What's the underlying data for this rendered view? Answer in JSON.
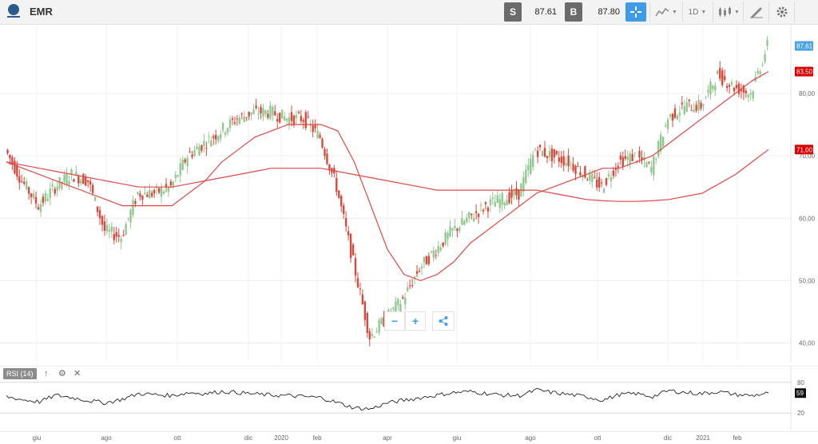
{
  "header": {
    "symbol": "EMR",
    "sell_letter": "S",
    "sell_price": "87.61",
    "buy_letter": "B",
    "buy_price": "87.80",
    "timeframe": "1D",
    "icons": [
      "etoro-logo-icon",
      "crosshair-icon",
      "chart-type-icon",
      "candles-icon",
      "draw-icon",
      "gear-icon"
    ]
  },
  "controls": {
    "zoom_out": "−",
    "zoom_in": "+",
    "share_icon": "share-icon"
  },
  "rsi": {
    "label": "RSI (14)",
    "current": "59"
  },
  "colors": {
    "bull": "#8fc98f",
    "bear": "#d8493d",
    "ma": "#e04848",
    "price_badge": "#4aa3df",
    "ma_badge": "#d80000",
    "rsi_line": "#222222"
  },
  "chart_data": [
    {
      "type": "candlestick",
      "symbol": "EMR",
      "x": [
        "2019-05-20",
        "2019-06-03",
        "2019-06-17",
        "2019-07-01",
        "2019-07-15",
        "2019-07-29",
        "2019-08-12",
        "2019-08-26",
        "2019-09-09",
        "2019-09-23",
        "2019-10-07",
        "2019-10-21",
        "2019-11-04",
        "2019-11-18",
        "2019-12-02",
        "2019-12-16",
        "2019-12-30",
        "2020-01-13",
        "2020-01-27",
        "2020-02-10",
        "2020-02-24",
        "2020-03-09",
        "2020-03-23",
        "2020-04-06",
        "2020-04-20",
        "2020-05-04",
        "2020-05-18",
        "2020-06-01",
        "2020-06-15",
        "2020-06-29",
        "2020-07-13",
        "2020-07-27",
        "2020-08-10",
        "2020-08-24",
        "2020-09-07",
        "2020-09-21",
        "2020-10-05",
        "2020-10-19",
        "2020-11-02",
        "2020-11-16",
        "2020-11-30",
        "2020-12-14",
        "2020-12-28",
        "2021-01-11",
        "2021-01-25",
        "2021-02-08",
        "2021-02-22"
      ],
      "close": [
        71,
        66,
        62,
        65,
        67,
        66,
        58,
        57,
        64,
        64,
        65,
        70,
        72,
        74,
        76,
        77,
        77,
        76,
        76,
        73,
        65,
        53,
        41,
        44,
        47,
        52,
        55,
        58,
        60,
        62,
        63,
        64,
        71,
        70,
        69,
        67,
        65,
        69,
        70,
        68,
        76,
        78,
        78,
        83,
        81,
        80,
        87.6
      ],
      "ma_short": [
        69,
        68,
        67,
        66,
        65,
        64,
        63,
        62,
        62,
        62,
        62,
        64,
        66,
        69,
        71,
        73,
        74,
        75,
        75,
        75,
        74,
        69,
        62,
        55,
        51,
        50,
        51,
        53,
        56,
        58,
        60,
        62,
        64,
        65,
        66,
        67,
        68,
        68,
        69,
        70,
        72,
        74,
        76,
        78,
        80,
        82,
        83.5
      ],
      "ma_long": [
        69,
        68.5,
        68,
        67.5,
        67,
        66.5,
        66,
        65.5,
        65,
        65,
        65,
        65.5,
        66,
        66.5,
        67,
        67.5,
        68,
        68,
        68,
        68,
        67.5,
        67,
        66.5,
        66,
        65.5,
        65,
        64.5,
        64.5,
        64.5,
        64.5,
        64.5,
        64.5,
        64.5,
        64,
        63.5,
        63,
        62.8,
        62.7,
        62.7,
        62.8,
        63,
        63.5,
        64,
        65.5,
        67,
        69,
        71
      ],
      "ylim": [
        37,
        91
      ],
      "yticks": [
        "40,00",
        "50,00",
        "60,00",
        "70,00",
        "80,00"
      ],
      "last_price_label": "87,61",
      "ma_short_label": "83,50",
      "ma_long_label": "71,00"
    },
    {
      "type": "line",
      "name": "RSI (14)",
      "values": [
        52,
        46,
        42,
        55,
        50,
        44,
        40,
        47,
        58,
        56,
        54,
        60,
        58,
        62,
        60,
        57,
        55,
        54,
        52,
        50,
        40,
        30,
        28,
        40,
        45,
        50,
        55,
        60,
        62,
        58,
        55,
        54,
        65,
        60,
        56,
        52,
        45,
        56,
        58,
        52,
        64,
        60,
        58,
        62,
        56,
        54,
        59
      ],
      "ylim": [
        0,
        100
      ],
      "yticks": [
        "20",
        "80"
      ]
    }
  ],
  "xaxis": {
    "labels": [
      "giu",
      "ago",
      "ott",
      "dic",
      "2020",
      "feb",
      "apr",
      "giu",
      "ago",
      "ott",
      "dic",
      "2021",
      "feb"
    ]
  }
}
